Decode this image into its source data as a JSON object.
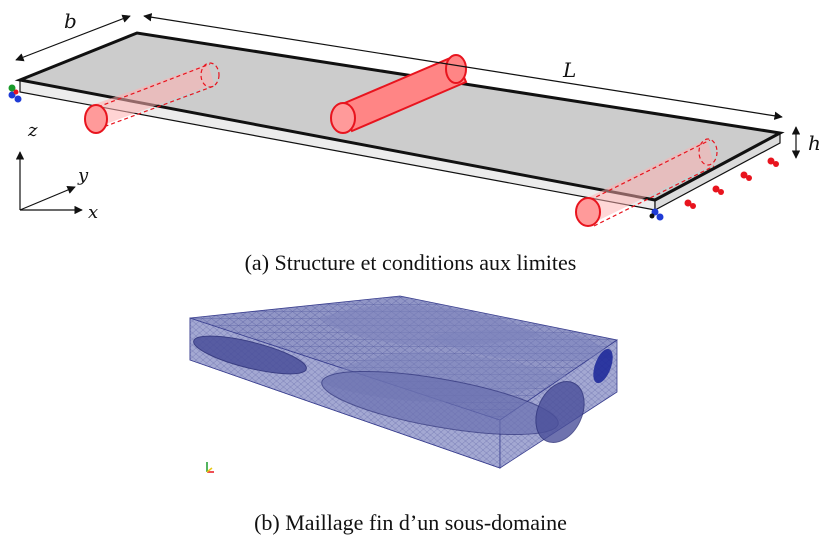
{
  "panel_a": {
    "caption": "(a) Structure et conditions aux limites",
    "dimensions": {
      "width": "b",
      "length": "L",
      "height": "h"
    },
    "axes": {
      "z": "z",
      "y": "y",
      "x": "x"
    },
    "colors": {
      "plate_top": "#cccccc",
      "plate_side": "#ebebeb",
      "inclusion": "#ff7a7a",
      "inclusion_stroke": "#e8141e",
      "support_red": "#e8141e",
      "support_blue": "#1f3bd6",
      "support_green": "#1a9a2a"
    }
  },
  "panel_b": {
    "caption": "(b) Maillage fin d’un sous-domaine",
    "colors": {
      "mesh_fill": "#8f95c4",
      "mesh_line": "#3a3f8f"
    }
  }
}
